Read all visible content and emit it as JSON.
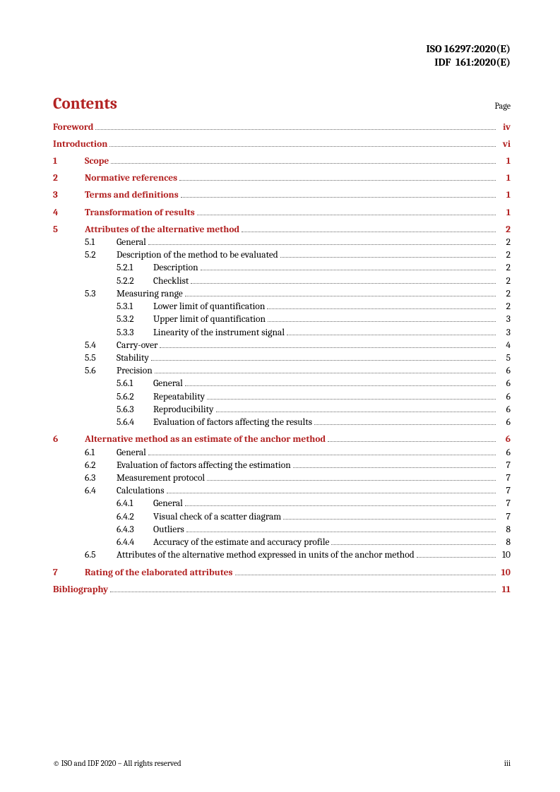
{
  "header": {
    "id_line1": "ISO 16297:2020(E)",
    "id_line2": "IDF  161:2020(E)"
  },
  "contents": {
    "title": "Contents",
    "page_label": "Page"
  },
  "toc": [
    {
      "level": 0,
      "num": "",
      "title": "Foreword",
      "page": "iv",
      "bold": true,
      "gap": false
    },
    {
      "level": 0,
      "num": "",
      "title": "Introduction",
      "page": "vi",
      "bold": true,
      "gap": true
    },
    {
      "level": 1,
      "num": "1",
      "title": "Scope",
      "page": "1",
      "bold": true,
      "gap": true
    },
    {
      "level": 1,
      "num": "2",
      "title": "Normative references",
      "page": "1",
      "bold": true,
      "gap": true
    },
    {
      "level": 1,
      "num": "3",
      "title": "Terms and definitions",
      "page": "1",
      "bold": true,
      "gap": true
    },
    {
      "level": 1,
      "num": "4",
      "title": "Transformation of results",
      "page": "1",
      "bold": true,
      "gap": true
    },
    {
      "level": 1,
      "num": "5",
      "title": "Attributes of the alternative method",
      "page": "2",
      "bold": true,
      "gap": true
    },
    {
      "level": 2,
      "num": "5.1",
      "title": "General",
      "page": "2",
      "bold": false,
      "gap": false
    },
    {
      "level": 2,
      "num": "5.2",
      "title": "Description of the method to be evaluated",
      "page": "2",
      "bold": false,
      "gap": false
    },
    {
      "level": 3,
      "num": "5.2.1",
      "title": "Description",
      "page": "2",
      "bold": false,
      "gap": false
    },
    {
      "level": 3,
      "num": "5.2.2",
      "title": "Checklist",
      "page": "2",
      "bold": false,
      "gap": false
    },
    {
      "level": 2,
      "num": "5.3",
      "title": "Measuring range",
      "page": "2",
      "bold": false,
      "gap": false
    },
    {
      "level": 3,
      "num": "5.3.1",
      "title": "Lower limit of quantification",
      "page": "2",
      "bold": false,
      "gap": false
    },
    {
      "level": 3,
      "num": "5.3.2",
      "title": "Upper limit of quantification",
      "page": "3",
      "bold": false,
      "gap": false
    },
    {
      "level": 3,
      "num": "5.3.3",
      "title": "Linearity of the instrument signal",
      "page": "3",
      "bold": false,
      "gap": false
    },
    {
      "level": 2,
      "num": "5.4",
      "title": "Carry-over",
      "page": "4",
      "bold": false,
      "gap": false
    },
    {
      "level": 2,
      "num": "5.5",
      "title": "Stability",
      "page": "5",
      "bold": false,
      "gap": false
    },
    {
      "level": 2,
      "num": "5.6",
      "title": "Precision",
      "page": "6",
      "bold": false,
      "gap": false
    },
    {
      "level": 3,
      "num": "5.6.1",
      "title": "General",
      "page": "6",
      "bold": false,
      "gap": false
    },
    {
      "level": 3,
      "num": "5.6.2",
      "title": "Repeatability",
      "page": "6",
      "bold": false,
      "gap": false
    },
    {
      "level": 3,
      "num": "5.6.3",
      "title": "Reproducibility",
      "page": "6",
      "bold": false,
      "gap": false
    },
    {
      "level": 3,
      "num": "5.6.4",
      "title": "Evaluation of factors affecting the results",
      "page": "6",
      "bold": false,
      "gap": false
    },
    {
      "level": 1,
      "num": "6",
      "title": "Alternative method as an estimate of the anchor method",
      "page": "6",
      "bold": true,
      "gap": true
    },
    {
      "level": 2,
      "num": "6.1",
      "title": "General",
      "page": "6",
      "bold": false,
      "gap": false
    },
    {
      "level": 2,
      "num": "6.2",
      "title": "Evaluation of factors affecting the estimation",
      "page": "7",
      "bold": false,
      "gap": false
    },
    {
      "level": 2,
      "num": "6.3",
      "title": "Measurement protocol",
      "page": "7",
      "bold": false,
      "gap": false
    },
    {
      "level": 2,
      "num": "6.4",
      "title": "Calculations",
      "page": "7",
      "bold": false,
      "gap": false
    },
    {
      "level": 3,
      "num": "6.4.1",
      "title": "General",
      "page": "7",
      "bold": false,
      "gap": false
    },
    {
      "level": 3,
      "num": "6.4.2",
      "title": "Visual check of a scatter diagram",
      "page": "7",
      "bold": false,
      "gap": false
    },
    {
      "level": 3,
      "num": "6.4.3",
      "title": "Outliers",
      "page": "8",
      "bold": false,
      "gap": false
    },
    {
      "level": 3,
      "num": "6.4.4",
      "title": "Accuracy of the estimate and accuracy profile",
      "page": "8",
      "bold": false,
      "gap": false
    },
    {
      "level": 2,
      "num": "6.5",
      "title": "Attributes of the alternative method expressed in units of the anchor method",
      "page": "10",
      "bold": false,
      "gap": false
    },
    {
      "level": 1,
      "num": "7",
      "title": "Rating of the elaborated attributes",
      "page": "10",
      "bold": true,
      "gap": true
    },
    {
      "level": 0,
      "num": "",
      "title": "Bibliography",
      "page": "11",
      "bold": true,
      "gap": true
    }
  ],
  "footer": {
    "copyright": "© ISO and IDF 2020 – All rights reserved",
    "page_number": "iii"
  }
}
